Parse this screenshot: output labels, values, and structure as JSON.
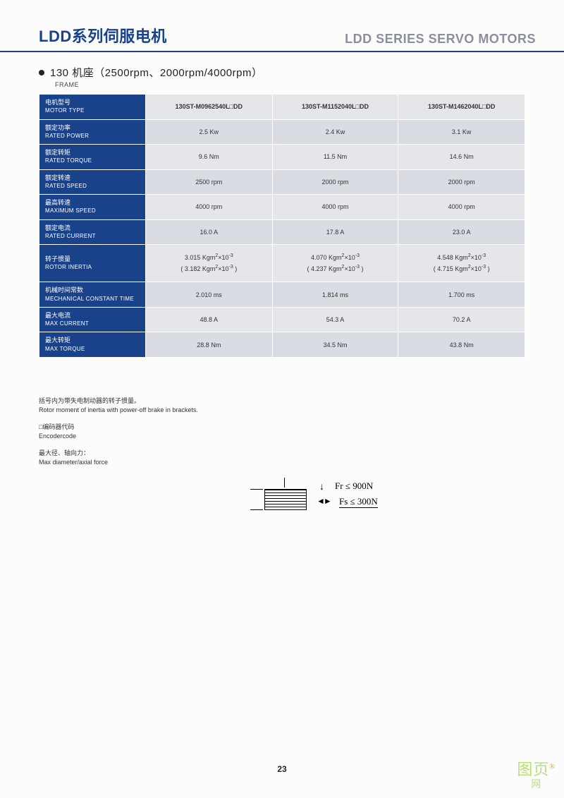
{
  "header": {
    "title_cn": "LDD系列伺服电机",
    "title_en": "LDD SERIES SERVO MOTORS"
  },
  "subtitle": {
    "main": "130 机座（2500rpm、2000rpm/4000rpm）",
    "frame": "FRAME"
  },
  "table": {
    "header_color": "#1a428a",
    "alt_row_a": "#e4e6ea",
    "alt_row_b": "#d9dce2",
    "label_font_size": 9,
    "rows": [
      {
        "cn": "电机型号",
        "en": "MOTOR TYPE",
        "vals": [
          "130ST-M0962540L□DD",
          "130ST-M1152040L□DD",
          "130ST-M1462040L□DD"
        ],
        "bold": true
      },
      {
        "cn": "额定功率",
        "en": "RATED POWER",
        "vals": [
          "2.5 Kw",
          "2.4 Kw",
          "3.1 Kw"
        ]
      },
      {
        "cn": "额定转矩",
        "en": "RATED TORQUE",
        "vals": [
          "9.6 Nm",
          "11.5 Nm",
          "14.6 Nm"
        ]
      },
      {
        "cn": "额定转速",
        "en": "RATED SPEED",
        "vals": [
          "2500 rpm",
          "2000 rpm",
          "2000 rpm"
        ]
      },
      {
        "cn": "最高转速",
        "en": "MAXIMUM SPEED",
        "vals": [
          "4000 rpm",
          "4000 rpm",
          "4000 rpm"
        ]
      },
      {
        "cn": "额定电流",
        "en": "RATED CURRENT",
        "vals": [
          "16.0 A",
          "17.8 A",
          "23.0 A"
        ]
      },
      {
        "cn": "转子惯量",
        "en": "ROTOR INERTIA",
        "vals_html": [
          "3.015 Kgm<span class='sup'>2</span>×10<span class='sup'>-3</span><br>( 3.182 Kgm<span class='sup'>2</span>×10<span class='sup'>-3</span> )",
          "4.070 Kgm<span class='sup'>2</span>×10<span class='sup'>-3</span><br>( 4.237 Kgm<span class='sup'>2</span>×10<span class='sup'>-3</span> )",
          "4.548 Kgm<span class='sup'>2</span>×10<span class='sup'>-3</span><br>( 4.715 Kgm<span class='sup'>2</span>×10<span class='sup'>-3</span> )"
        ],
        "tall": true
      },
      {
        "cn": "机械时间常数",
        "en": "MECHANICAL CONSTANT TIME",
        "vals": [
          "2.010 ms",
          "1.814 ms",
          "1.700 ms"
        ]
      },
      {
        "cn": "最大电流",
        "en": "MAX  CURRENT",
        "vals": [
          "48.8 A",
          "54.3 A",
          "70.2 A"
        ]
      },
      {
        "cn": "最大转矩",
        "en": "MAX TORQUE",
        "vals": [
          "28.8 Nm",
          "34.5 Nm",
          "43.8 Nm"
        ]
      }
    ]
  },
  "notes": {
    "inertia_cn": "括号内为带失电制动器的转子惯量。",
    "inertia_en": "Rotor moment of inertia with power-off brake in brackets.",
    "encoder_cn": "□编码器代码",
    "encoder_en": "Encodercode",
    "force_cn": "最大径、轴向力：",
    "force_en": "Max diameter/axial force"
  },
  "diagram": {
    "fr": "Fr ≤ 900N",
    "fs": "Fs ≤ 300N"
  },
  "page_number": "23",
  "watermark": {
    "top": "图页",
    "reg": "®",
    "bottom": "网"
  }
}
